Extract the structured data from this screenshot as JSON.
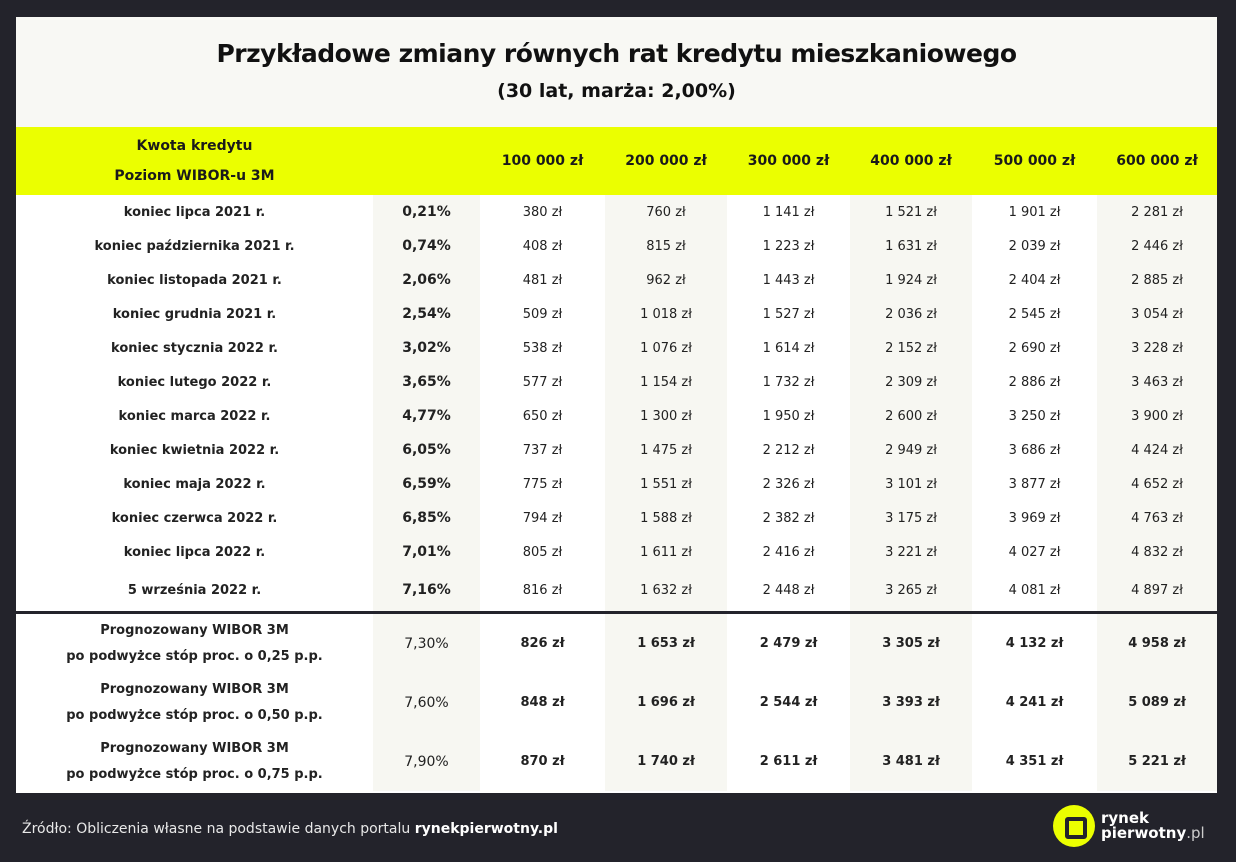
{
  "title": "Przykładowe zmiany równych rat kredytu mieszkaniowego",
  "subtitle": "(30 lat, marża: 2,00%)",
  "header": {
    "label_line1": "Kwota kredytu",
    "label_line2": "Poziom WIBOR-u 3M",
    "amounts": [
      "100 000 zł",
      "200 000 zł",
      "300 000 zł",
      "400 000 zł",
      "500 000 zł",
      "600 000 zł"
    ]
  },
  "rows": [
    {
      "label": "koniec lipca 2021 r.",
      "wibor": "0,21%",
      "values": [
        "380 zł",
        "760 zł",
        "1 141 zł",
        "1 521 zł",
        "1 901 zł",
        "2 281 zł"
      ]
    },
    {
      "label": "koniec października 2021 r.",
      "wibor": "0,74%",
      "values": [
        "408 zł",
        "815 zł",
        "1 223 zł",
        "1 631 zł",
        "2 039 zł",
        "2 446 zł"
      ]
    },
    {
      "label": "koniec listopada 2021 r.",
      "wibor": "2,06%",
      "values": [
        "481 zł",
        "962 zł",
        "1 443 zł",
        "1 924 zł",
        "2 404 zł",
        "2 885 zł"
      ]
    },
    {
      "label": "koniec grudnia 2021 r.",
      "wibor": "2,54%",
      "values": [
        "509 zł",
        "1 018 zł",
        "1 527 zł",
        "2 036 zł",
        "2 545 zł",
        "3 054 zł"
      ]
    },
    {
      "label": "koniec stycznia 2022 r.",
      "wibor": "3,02%",
      "values": [
        "538 zł",
        "1 076 zł",
        "1 614 zł",
        "2 152 zł",
        "2 690 zł",
        "3 228 zł"
      ]
    },
    {
      "label": "koniec lutego 2022 r.",
      "wibor": "3,65%",
      "values": [
        "577 zł",
        "1 154 zł",
        "1 732 zł",
        "2 309 zł",
        "2 886 zł",
        "3 463 zł"
      ]
    },
    {
      "label": "koniec marca 2022 r.",
      "wibor": "4,77%",
      "values": [
        "650 zł",
        "1 300 zł",
        "1 950 zł",
        "2 600 zł",
        "3 250 zł",
        "3 900 zł"
      ]
    },
    {
      "label": "koniec kwietnia 2022 r.",
      "wibor": "6,05%",
      "values": [
        "737 zł",
        "1 475 zł",
        "2 212 zł",
        "2 949 zł",
        "3 686 zł",
        "4 424 zł"
      ]
    },
    {
      "label": "koniec maja 2022 r.",
      "wibor": "6,59%",
      "values": [
        "775 zł",
        "1 551 zł",
        "2 326 zł",
        "3 101 zł",
        "3 877 zł",
        "4 652 zł"
      ]
    },
    {
      "label": "koniec czerwca 2022 r.",
      "wibor": "6,85%",
      "values": [
        "794 zł",
        "1 588 zł",
        "2 382 zł",
        "3 175 zł",
        "3 969 zł",
        "4 763 zł"
      ]
    },
    {
      "label": "koniec lipca 2022 r.",
      "wibor": "7,01%",
      "values": [
        "805 zł",
        "1 611 zł",
        "2 416 zł",
        "3 221 zł",
        "4 027 zł",
        "4 832 zł"
      ]
    },
    {
      "label": "5 września 2022 r.",
      "wibor": "7,16%",
      "values": [
        "816 zł",
        "1 632 zł",
        "2 448 zł",
        "3 265 zł",
        "4 081 zł",
        "4 897 zł"
      ]
    }
  ],
  "forecast": [
    {
      "line1": "Prognozowany WIBOR 3M",
      "line2": "po podwyżce stóp proc. o 0,25 p.p.",
      "wibor": "7,30%",
      "values": [
        "826 zł",
        "1 653 zł",
        "2 479 zł",
        "3 305 zł",
        "4 132 zł",
        "4 958 zł"
      ]
    },
    {
      "line1": "Prognozowany WIBOR 3M",
      "line2": "po podwyżce stóp proc. o 0,50 p.p.",
      "wibor": "7,60%",
      "values": [
        "848 zł",
        "1 696 zł",
        "2 544 zł",
        "3 393 zł",
        "4 241 zł",
        "5 089 zł"
      ]
    },
    {
      "line1": "Prognozowany WIBOR 3M",
      "line2": "po podwyżce stóp proc. o 0,75 p.p.",
      "wibor": "7,90%",
      "values": [
        "870 zł",
        "1 740 zł",
        "2 611 zł",
        "3 481 zł",
        "4 351 zł",
        "5 221 zł"
      ]
    }
  ],
  "footer": {
    "source_prefix": "Źródło: Obliczenia własne na podstawie danych portalu ",
    "source_site": "rynekpierwotny.pl"
  },
  "logo": {
    "line1": "rynek",
    "line2": "pierwotny",
    "suffix": ".pl"
  },
  "colors": {
    "accent": "#ebff00",
    "background": "#23232b"
  }
}
